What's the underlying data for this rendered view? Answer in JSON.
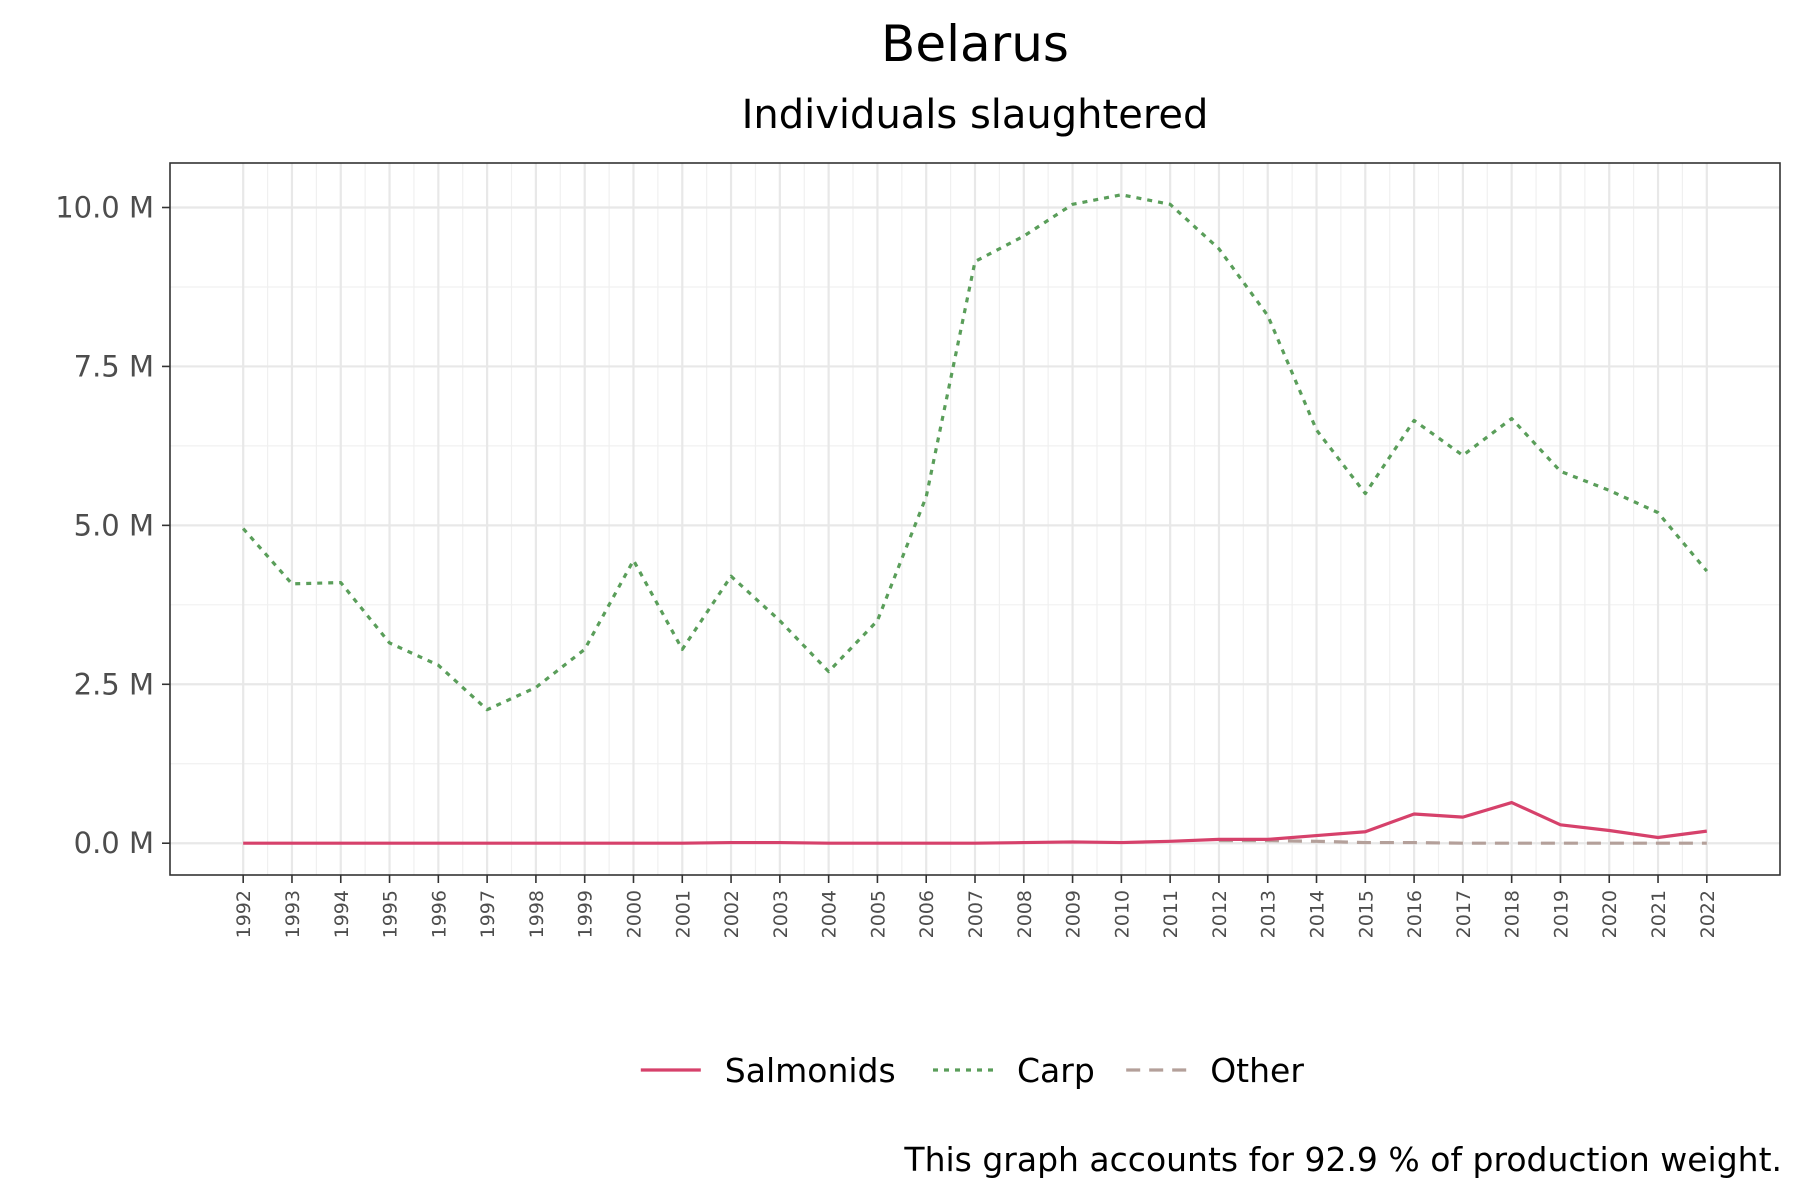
{
  "chart_data": {
    "type": "line",
    "title": "Belarus",
    "subtitle": "Individuals slaughtered",
    "caption": "This graph accounts for 92.9 % of production weight.",
    "xlabel": "",
    "ylabel": "",
    "x": [
      1992,
      1993,
      1994,
      1995,
      1996,
      1997,
      1998,
      1999,
      2000,
      2001,
      2002,
      2003,
      2004,
      2005,
      2006,
      2007,
      2008,
      2009,
      2010,
      2011,
      2012,
      2013,
      2014,
      2015,
      2016,
      2017,
      2018,
      2019,
      2020,
      2021,
      2022
    ],
    "xlim": [
      1990.5,
      2023.5
    ],
    "ylim": [
      -0.5,
      10.7
    ],
    "y_ticks": [
      0.0,
      2.5,
      5.0,
      7.5,
      10.0
    ],
    "y_tick_labels": [
      "0.0 M",
      "2.5 M",
      "5.0 M",
      "7.5 M",
      "10.0 M"
    ],
    "y_unit": "M",
    "grid": true,
    "legend_position": "bottom",
    "series": [
      {
        "name": "Salmonids",
        "color": "#d6416b",
        "dash": "solid",
        "x": [
          1992,
          1993,
          1994,
          1995,
          1996,
          1997,
          1998,
          1999,
          2000,
          2001,
          2002,
          2003,
          2004,
          2005,
          2006,
          2007,
          2008,
          2009,
          2010,
          2011,
          2012,
          2013,
          2014,
          2015,
          2016,
          2017,
          2018,
          2019,
          2020,
          2021,
          2022
        ],
        "values": [
          0.0,
          0.0,
          0.0,
          0.0,
          0.0,
          0.0,
          0.0,
          0.0,
          0.0,
          0.0,
          0.01,
          0.01,
          0.0,
          0.0,
          0.0,
          0.0,
          0.01,
          0.02,
          0.01,
          0.03,
          0.06,
          0.06,
          0.12,
          0.18,
          0.46,
          0.41,
          0.64,
          0.29,
          0.2,
          0.09,
          0.19
        ]
      },
      {
        "name": "Carp",
        "color": "#5a9e5a",
        "dash": "dotted",
        "x": [
          1992,
          1993,
          1994,
          1995,
          1996,
          1997,
          1998,
          1999,
          2000,
          2001,
          2002,
          2003,
          2004,
          2005,
          2006,
          2007,
          2008,
          2009,
          2010,
          2011,
          2012,
          2013,
          2014,
          2015,
          2016,
          2017,
          2018,
          2019,
          2020,
          2021,
          2022
        ],
        "values": [
          4.95,
          4.08,
          4.1,
          3.15,
          2.8,
          2.1,
          2.45,
          3.05,
          4.45,
          3.05,
          4.2,
          3.5,
          2.7,
          3.5,
          5.45,
          9.15,
          9.55,
          10.05,
          10.2,
          10.05,
          9.35,
          8.3,
          6.5,
          5.5,
          6.65,
          6.1,
          6.68,
          5.85,
          5.55,
          5.2,
          4.28
        ]
      },
      {
        "name": "Other",
        "color": "#b4a09a",
        "dash": "dashed",
        "x": [
          2012,
          2013,
          2014,
          2015,
          2016,
          2017,
          2018,
          2019,
          2020,
          2021,
          2022
        ],
        "values": [
          0.04,
          0.04,
          0.03,
          0.01,
          0.01,
          0.0,
          0.0,
          0.0,
          0.0,
          0.0,
          0.0
        ]
      }
    ]
  }
}
